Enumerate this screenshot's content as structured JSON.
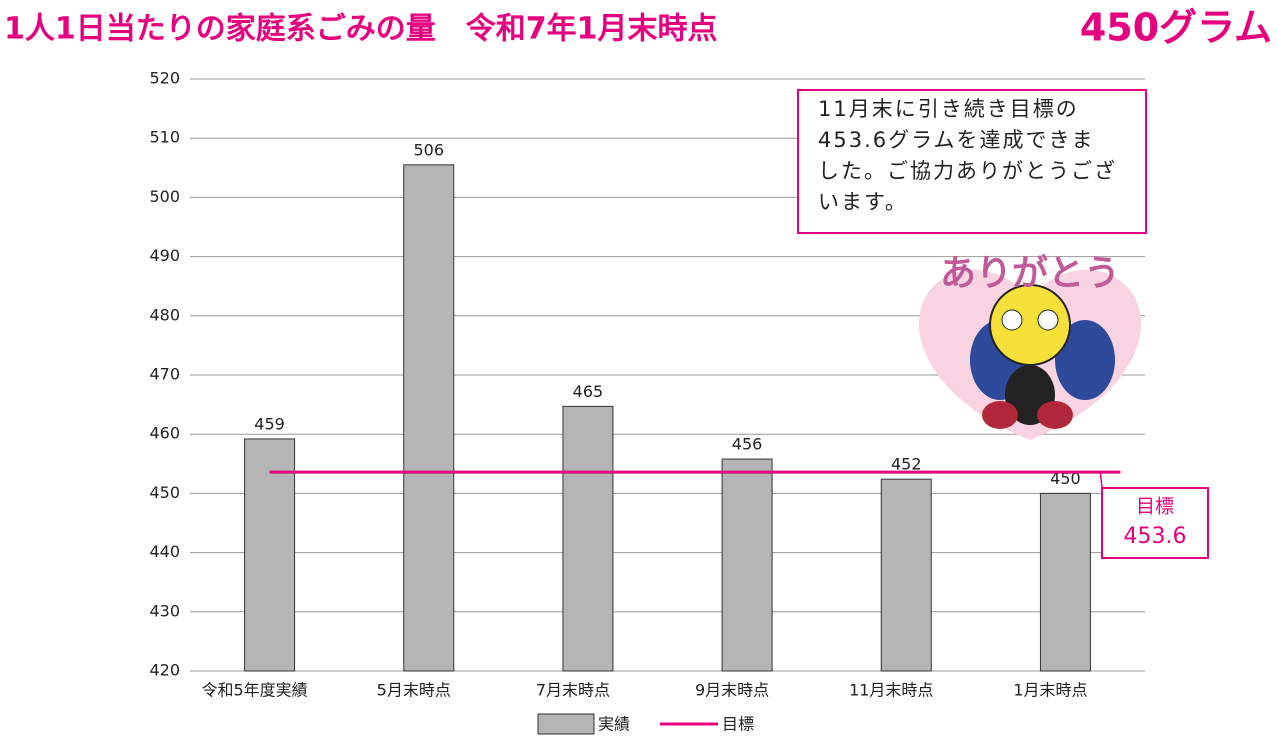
{
  "chart_data": {
    "type": "bar",
    "title": "1人1日当たりの家庭系ごみの量　令和7年1月末時点",
    "subtitle": "450グラム",
    "categories": [
      "令和5年度実績",
      "5月末時点",
      "7月末時点",
      "9月末時点",
      "11月末時点",
      "1月末時点"
    ],
    "series": [
      {
        "name": "実績",
        "color": "#b5b5b5",
        "values": [
          459.2,
          505.5,
          464.7,
          455.8,
          452.4,
          450.0
        ],
        "value_labels": [
          "459",
          "506",
          "465",
          "456",
          "452",
          "450"
        ]
      }
    ],
    "target": {
      "name": "目標",
      "value": 453.6,
      "color": "#e4007f"
    },
    "ylim": [
      420,
      520
    ],
    "yticks": [
      420,
      430,
      440,
      450,
      460,
      470,
      480,
      490,
      500,
      510,
      520
    ],
    "grid": true,
    "annotation": [
      "11月末に引き続き目標の",
      "453.6グラムを達成できま",
      "した。ご協力ありがとうござ",
      "います。"
    ],
    "mascot_text": "ありがとう"
  }
}
